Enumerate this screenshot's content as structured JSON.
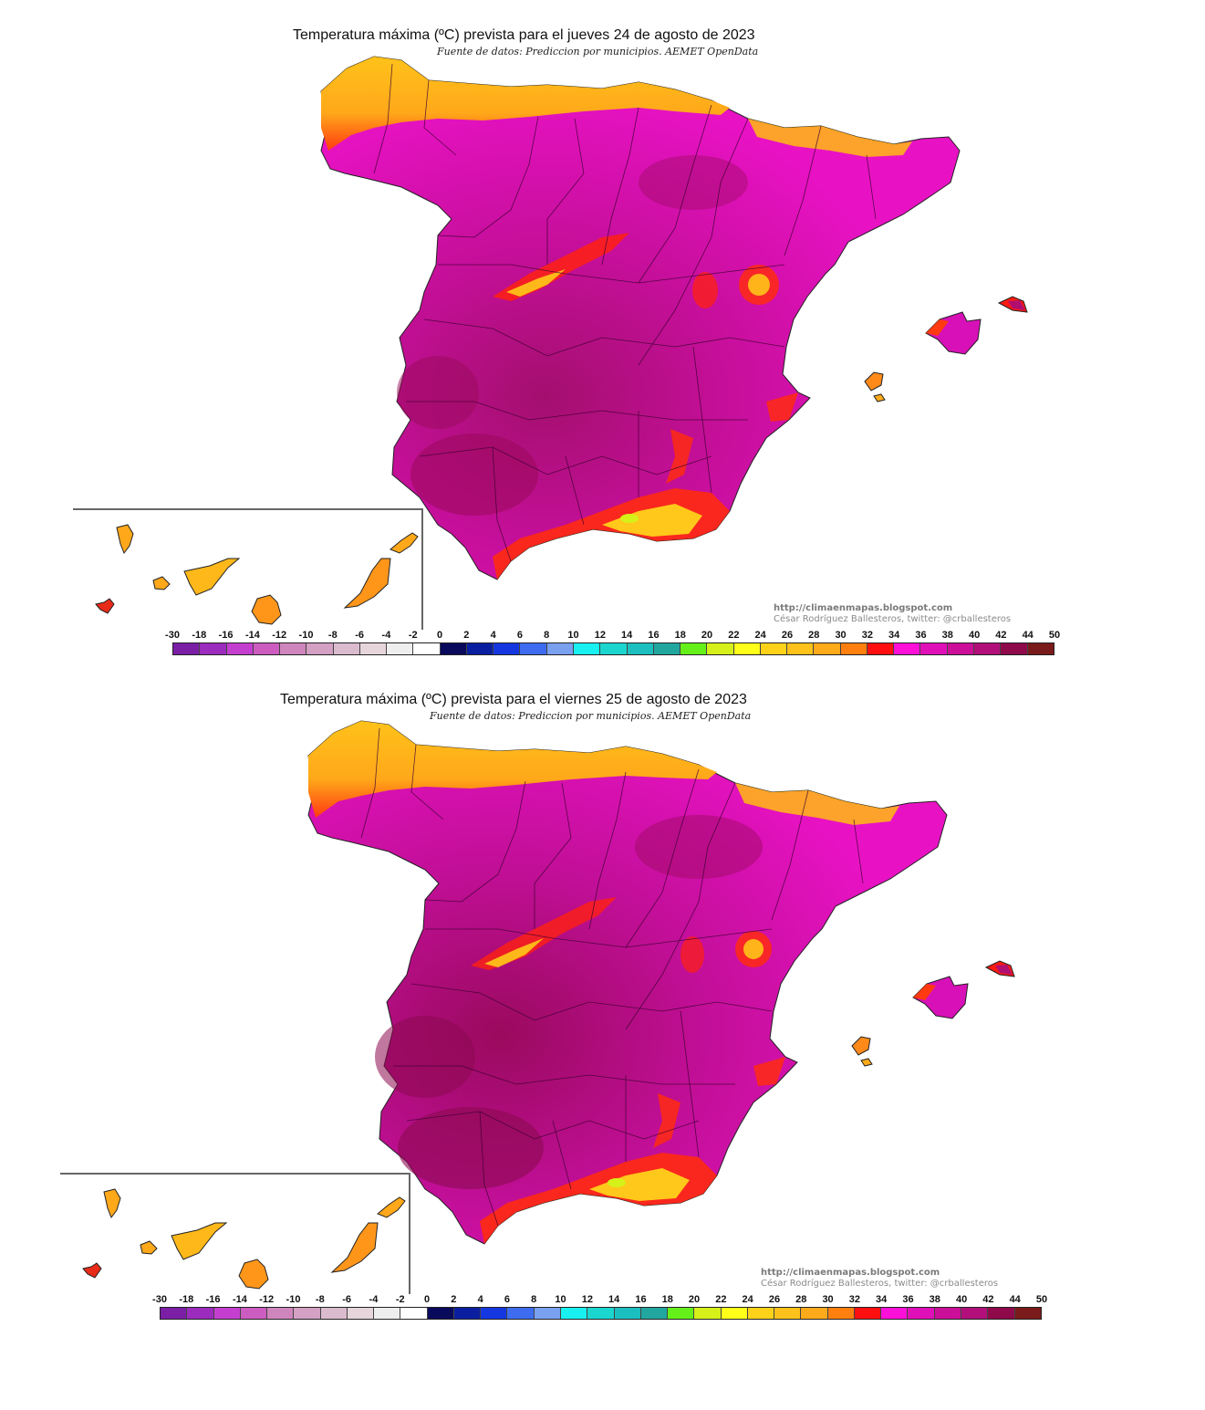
{
  "maps": [
    {
      "title": "Temperatura máxima (ºC) prevista para el jueves 24 de agosto de 2023",
      "subtitle": "Fuente de datos: Prediccion por municipios. AEMET OpenData",
      "attribution_url": "http://climaenmapas.blogspot.com",
      "attribution_author": "César Rodríguez Ballesteros, twitter: @crballesteros"
    },
    {
      "title": "Temperatura máxima (ºC) prevista para el viernes 25 de agosto de 2023",
      "subtitle": "Fuente de datos: Prediccion por municipios. AEMET OpenData",
      "attribution_url": "http://climaenmapas.blogspot.com",
      "attribution_author": "César Rodríguez Ballesteros, twitter: @crballesteros"
    }
  ],
  "legend": {
    "unit": "ºC",
    "ticks": [
      "-30",
      "-18",
      "-16",
      "-14",
      "-12",
      "-10",
      "-8",
      "-6",
      "-4",
      "-2",
      "0",
      "2",
      "4",
      "6",
      "8",
      "10",
      "12",
      "14",
      "16",
      "18",
      "20",
      "22",
      "24",
      "26",
      "28",
      "30",
      "32",
      "34",
      "36",
      "38",
      "40",
      "42",
      "44",
      "50"
    ],
    "colors": [
      "#7a1fa6",
      "#9b2cbd",
      "#c43fcf",
      "#cc5cc0",
      "#cf86bd",
      "#d4a0c4",
      "#dbbccf",
      "#e6d6dc",
      "#eeeeee",
      "#ffffff",
      "#0a0a5c",
      "#0a1fa0",
      "#1537e0",
      "#3d6cf0",
      "#7aa0f0",
      "#19f0f0",
      "#1ad6cf",
      "#1cbfbf",
      "#22a6a0",
      "#66f01a",
      "#d6f01a",
      "#ffff1a",
      "#ffd21a",
      "#ffc21a",
      "#ffaa1a",
      "#ff7f0f",
      "#ff0f0f",
      "#ff10d8",
      "#e010b8",
      "#cc0f98",
      "#b20f7a",
      "#8f0a4a",
      "#7a1a1a"
    ]
  },
  "regions": {
    "legend_colors_observed": {
      "north_coast_galicia_cantabria": "#ffb01a",
      "inland_plateau": "#e010b8",
      "guadalquivir_extremadura_hot": "#b20f7a",
      "mountain_red": "#ff1a1a",
      "canary_islands": "#ffaa1a",
      "el_hierro": "#e82020"
    }
  },
  "chart_data": [
    {
      "type": "heatmap",
      "title": "Temperatura máxima (ºC) prevista para el jueves 24 de agosto de 2023",
      "subtitle": "Fuente de datos: Prediccion por municipios. AEMET OpenData",
      "region": "Spain (Peninsula, Balearic Islands, Canary Islands inset)",
      "colorbar_ticks": [
        -30,
        -18,
        -16,
        -14,
        -12,
        -10,
        -8,
        -6,
        -4,
        -2,
        0,
        2,
        4,
        6,
        8,
        10,
        12,
        14,
        16,
        18,
        20,
        22,
        24,
        26,
        28,
        30,
        32,
        34,
        36,
        38,
        40,
        42,
        44,
        50
      ],
      "approx_regional_values": {
        "Galicia/Asturias/Cantabria coast": "26-30",
        "Cantabrian mountains fringe": "32-34",
        "Castilla y León": "36-38",
        "Ebro valley / Aragón": "38-40",
        "Extremadura / Guadiana": "40-42",
        "Guadalquivir valley": "40-44",
        "Sistema Central / Ibérico mountains": "28-34",
        "Sierra Nevada / Almería coast": "20-32",
        "Mallorca": "36-38",
        "Ibiza": "30-32",
        "Canary Islands": "28-32",
        "El Hierro": "32-34"
      }
    },
    {
      "type": "heatmap",
      "title": "Temperatura máxima (ºC) prevista para el viernes 25 de agosto de 2023",
      "subtitle": "Fuente de datos: Prediccion por municipios. AEMET OpenData",
      "region": "Spain (Peninsula, Balearic Islands, Canary Islands inset)",
      "colorbar_ticks": [
        -30,
        -18,
        -16,
        -14,
        -12,
        -10,
        -8,
        -6,
        -4,
        -2,
        0,
        2,
        4,
        6,
        8,
        10,
        12,
        14,
        16,
        18,
        20,
        22,
        24,
        26,
        28,
        30,
        32,
        34,
        36,
        38,
        40,
        42,
        44,
        50
      ],
      "approx_regional_values": {
        "Galicia/Asturias/Cantabria coast": "26-30",
        "Cantabrian mountains fringe": "32-34",
        "Castilla y León": "36-40",
        "Ebro valley / Aragón": "38-42",
        "Extremadura / Guadiana": "40-44",
        "Guadalquivir valley": "42-44",
        "Sistema Central / Ibérico mountains": "28-34",
        "Sierra Nevada / Almería coast": "20-32",
        "Mallorca": "36-38",
        "Menorca": "32-34",
        "Ibiza": "30-32",
        "Canary Islands": "28-32",
        "El Hierro": "32-34"
      }
    }
  ]
}
